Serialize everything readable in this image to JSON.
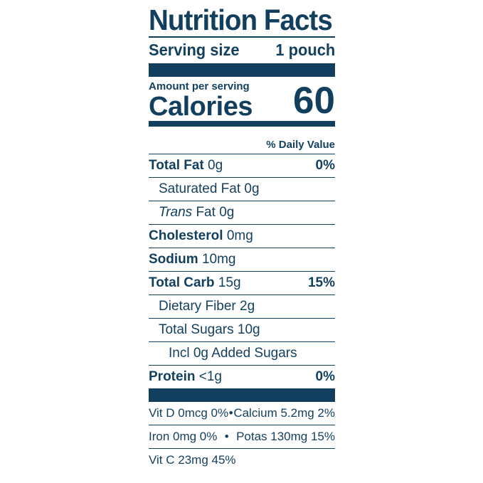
{
  "label": {
    "title": "Nutrition Facts",
    "serving_size_label": "Serving size",
    "serving_size_value": "1 pouch",
    "amount_per_serving": "Amount per serving",
    "calories_label": "Calories",
    "calories_value": "60",
    "daily_value_header": "% Daily Value",
    "nutrients": [
      {
        "name": "Total Fat",
        "amount": "0g",
        "dv": "0%"
      },
      {
        "name": "Saturated Fat",
        "amount": "0g",
        "dv": ""
      },
      {
        "name": "Trans",
        "suffix": " Fat",
        "amount": "0g",
        "dv": ""
      },
      {
        "name": "Cholesterol",
        "amount": "0mg",
        "dv": ""
      },
      {
        "name": "Sodium",
        "amount": "10mg",
        "dv": ""
      },
      {
        "name": "Total Carb",
        "amount": "15g",
        "dv": "15%"
      },
      {
        "name": "Dietary Fiber",
        "amount": "2g",
        "dv": ""
      },
      {
        "name": "Total Sugars",
        "amount": "10g",
        "dv": ""
      },
      {
        "name": "Incl 0g Added Sugars",
        "amount": "",
        "dv": ""
      },
      {
        "name": "Protein",
        "amount": "<1g",
        "dv": "0%"
      }
    ],
    "vitamins": {
      "row1_left": "Vit D 0mcg 0%",
      "row1_sep": "•",
      "row1_right": "Calcium 5.2mg 2%",
      "row2_left": "Iron 0mg 0%",
      "row2_sep": "•",
      "row2_right": "Potas 130mg 15%",
      "row3_left": "Vit C 23mg 45%"
    },
    "color": "#123f5e"
  }
}
